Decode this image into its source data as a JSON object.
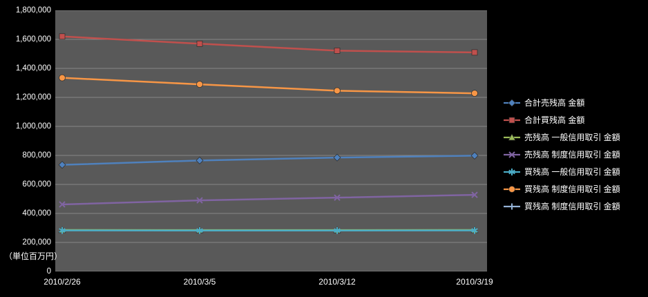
{
  "chart_data": {
    "type": "line",
    "title": "",
    "unit_label": "（単位百万円）",
    "xlabel": "",
    "ylabel": "",
    "x": [
      "2010/2/26",
      "2010/3/5",
      "2010/3/12",
      "2010/3/19"
    ],
    "ylim": [
      0,
      1800000
    ],
    "ytick_step": 200000,
    "grid": true,
    "legend_position": "right",
    "background_color": "#000000",
    "plot_background_color": "#595959",
    "gridline_color": "#878787",
    "text_color": "#ffffff",
    "series": [
      {
        "name": "合計売残高 金額",
        "color": "#4F81BD",
        "marker": "diamond",
        "values": [
          735000,
          765000,
          785000,
          798000
        ]
      },
      {
        "name": "合計買残高 金額",
        "color": "#C0504D",
        "marker": "square",
        "values": [
          1620000,
          1570000,
          1522000,
          1510000
        ]
      },
      {
        "name": "売残高 一般信用取引 金額",
        "color": "#9BBB59",
        "marker": "triangle",
        "values": [
          286000,
          285000,
          285000,
          286000
        ]
      },
      {
        "name": "売残高 制度信用取引 金額",
        "color": "#8064A2",
        "marker": "x",
        "values": [
          462000,
          490000,
          509000,
          528000
        ]
      },
      {
        "name": "買残高 一般信用取引 金額",
        "color": "#4BACC6",
        "marker": "asterisk",
        "values": [
          283000,
          282000,
          282000,
          283000
        ]
      },
      {
        "name": "買残高 制度信用取引 金額",
        "color": "#F79646",
        "marker": "circle",
        "values": [
          1335000,
          1290000,
          1246000,
          1228000
        ]
      },
      {
        "name": "買残高 制度信用取引 金額",
        "color": "#95B3D7",
        "marker": "plus",
        "values": []
      }
    ]
  }
}
